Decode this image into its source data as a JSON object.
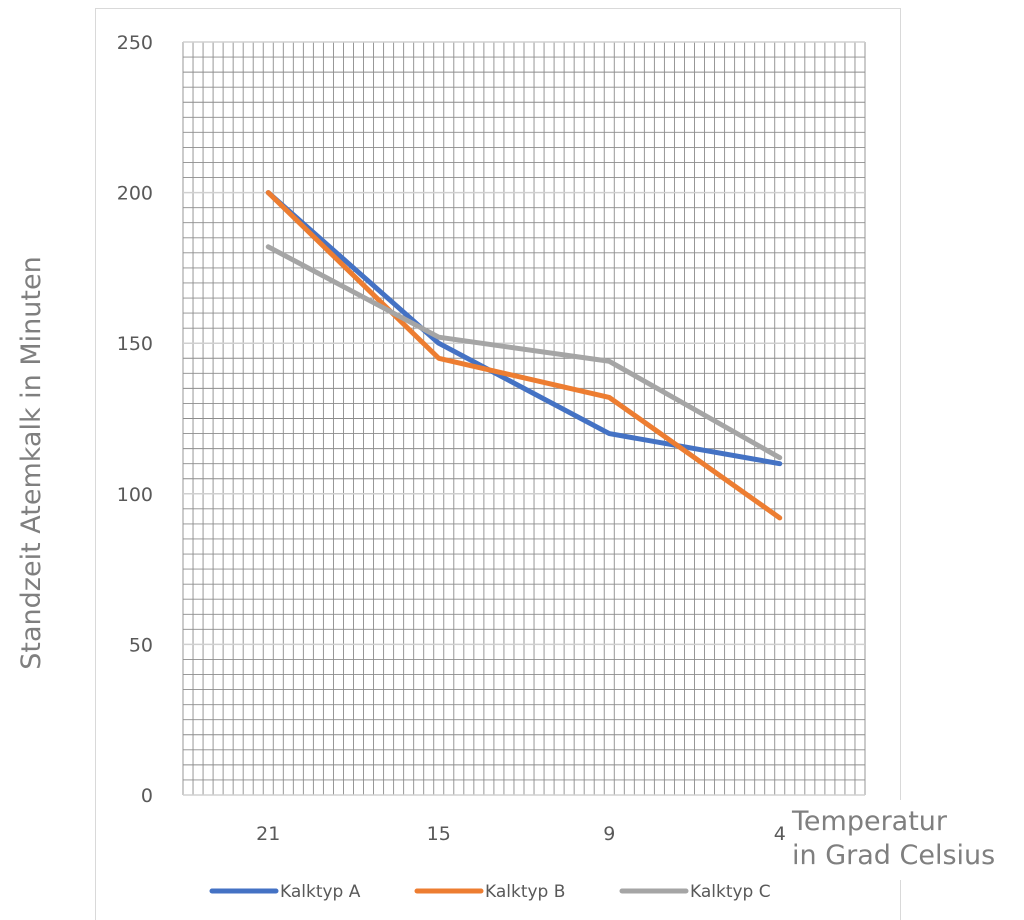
{
  "chart_data": {
    "type": "line",
    "title": "",
    "xlabel": [
      "Temperatur",
      "in Grad Celsius"
    ],
    "ylabel": "Standzeit Atemkalk in Minuten",
    "categories": [
      "21",
      "15",
      "9",
      "4"
    ],
    "ylim": [
      0,
      250
    ],
    "yticks": [
      0,
      50,
      100,
      150,
      200,
      250
    ],
    "grid": true,
    "legend_position": "bottom",
    "series": [
      {
        "name": "Kalktyp A",
        "color": "#4472c4",
        "values": [
          200,
          150,
          120,
          110
        ]
      },
      {
        "name": "Kalktyp B",
        "color": "#ed7d31",
        "values": [
          200,
          145,
          132,
          92
        ]
      },
      {
        "name": "Kalktyp C",
        "color": "#a5a5a5",
        "values": [
          182,
          152,
          144,
          112
        ]
      }
    ]
  }
}
